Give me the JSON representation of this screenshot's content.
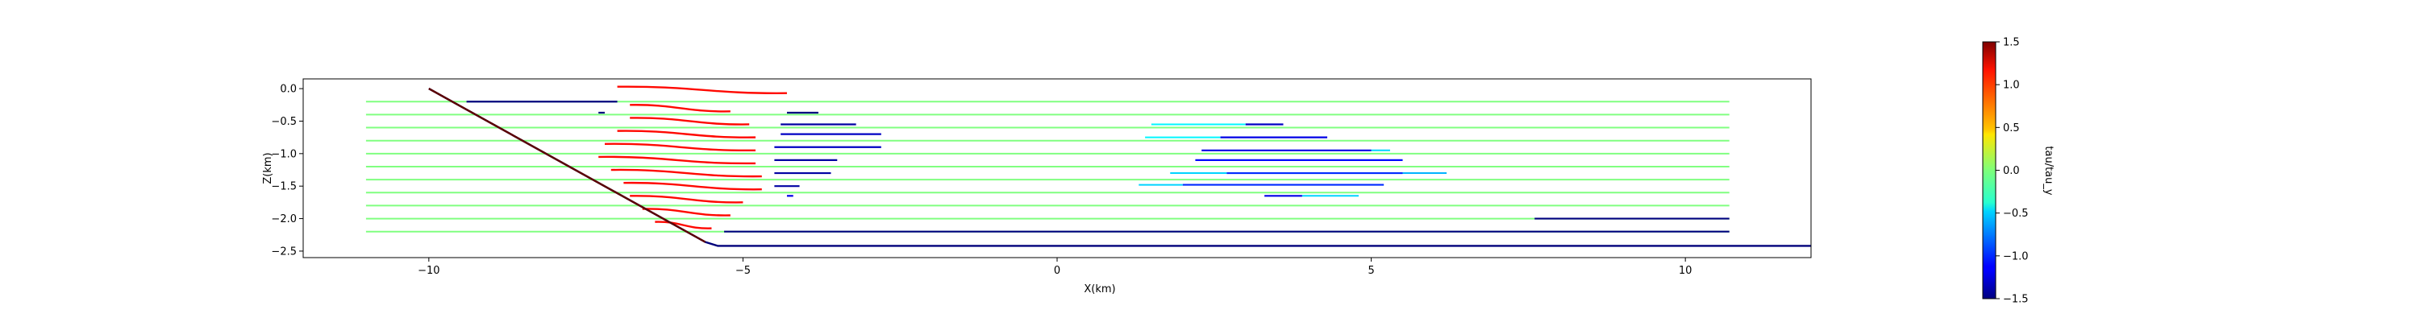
{
  "chart_data": {
    "type": "line",
    "title": "",
    "xlabel": "X(km)",
    "ylabel": "Z(km)",
    "xlim": [
      -12.0,
      12.0
    ],
    "ylim": [
      -2.6,
      0.15
    ],
    "x_ticks": [
      -10,
      -5,
      0,
      5,
      10
    ],
    "x_tick_labels": [
      "−10",
      "−5",
      "0",
      "5",
      "10"
    ],
    "y_ticks": [
      0.0,
      -0.5,
      -1.0,
      -1.5,
      -2.0,
      -2.5
    ],
    "y_tick_labels": [
      "0.0",
      "−0.5",
      "−1.0",
      "−1.5",
      "−2.0",
      "−2.5"
    ],
    "grid": false,
    "colorbar": {
      "label": "tau/tau_y",
      "range": [
        -1.5,
        1.5
      ],
      "colormap": "jet",
      "ticks": [
        1.5,
        1.0,
        0.5,
        0.0,
        -0.5,
        -1.0,
        -1.5
      ],
      "tick_labels": [
        "1.5",
        "1.0",
        "0.5",
        "0.0",
        "−0.5",
        "−1.0",
        "−1.5"
      ]
    },
    "boundary": {
      "name": "domain boundary",
      "color": "#00007a",
      "x": [
        -10.0,
        -5.6,
        -5.4,
        12.0
      ],
      "y": [
        0.0,
        -2.36,
        -2.42,
        -2.42
      ]
    },
    "streamlines": {
      "x_start": -11.0,
      "x_end": 10.7,
      "levels": [
        -0.2,
        -0.4,
        -0.6,
        -0.8,
        -1.0,
        -1.2,
        -1.4,
        -1.6,
        -1.8,
        -2.0,
        -2.2
      ]
    },
    "plastic_band": [
      {
        "y": -0.02,
        "x0": -7.0,
        "x1": -4.3
      },
      {
        "y": -0.3,
        "x0": -6.8,
        "x1": -5.2
      },
      {
        "y": -0.5,
        "x0": -6.8,
        "x1": -4.9
      },
      {
        "y": -0.7,
        "x0": -7.0,
        "x1": -4.8
      },
      {
        "y": -0.9,
        "x0": -7.2,
        "x1": -4.8
      },
      {
        "y": -1.1,
        "x0": -7.3,
        "x1": -4.8
      },
      {
        "y": -1.3,
        "x0": -7.1,
        "x1": -4.7
      },
      {
        "y": -1.5,
        "x0": -6.9,
        "x1": -4.7
      },
      {
        "y": -1.7,
        "x0": -6.8,
        "x1": -5.0
      },
      {
        "y": -1.9,
        "x0": -6.6,
        "x1": -5.2
      },
      {
        "y": -2.1,
        "x0": -6.4,
        "x1": -5.5
      }
    ],
    "low_stress_segments": [
      {
        "y": -0.2,
        "x0": -9.4,
        "x1": -7.0,
        "value": -1.5
      },
      {
        "y": -0.37,
        "x0": -7.3,
        "x1": -7.2,
        "value": -1.5
      },
      {
        "y": -0.37,
        "x0": -4.3,
        "x1": -3.8,
        "value": -1.5
      },
      {
        "y": -0.55,
        "x0": -4.4,
        "x1": -3.2,
        "value": -1.4
      },
      {
        "y": -0.7,
        "x0": -4.4,
        "x1": -2.8,
        "value": -1.3
      },
      {
        "y": -0.9,
        "x0": -4.5,
        "x1": -2.8,
        "value": -1.3
      },
      {
        "y": -1.1,
        "x0": -4.5,
        "x1": -3.5,
        "value": -1.4
      },
      {
        "y": -1.3,
        "x0": -4.5,
        "x1": -3.6,
        "value": -1.4
      },
      {
        "y": -1.5,
        "x0": -4.5,
        "x1": -4.1,
        "value": -1.4
      },
      {
        "y": -1.65,
        "x0": -4.3,
        "x1": -4.2,
        "value": -1.2
      },
      {
        "y": -0.55,
        "x0": 3.0,
        "x1": 3.6,
        "value": -1.3
      },
      {
        "y": -0.75,
        "x0": 2.6,
        "x1": 4.3,
        "value": -1.2
      },
      {
        "y": -0.95,
        "x0": 2.3,
        "x1": 5.0,
        "value": -1.2
      },
      {
        "y": -1.1,
        "x0": 2.2,
        "x1": 5.5,
        "value": -1.1
      },
      {
        "y": -1.3,
        "x0": 2.7,
        "x1": 5.5,
        "value": -1.0
      },
      {
        "y": -1.48,
        "x0": 2.0,
        "x1": 5.2,
        "value": -1.0
      },
      {
        "y": -1.65,
        "x0": 3.3,
        "x1": 3.9,
        "value": -1.2
      },
      {
        "y": -2.0,
        "x0": 7.6,
        "x1": 10.7,
        "value": -1.5
      },
      {
        "y": -2.2,
        "x0": -5.3,
        "x1": 10.7,
        "value": -1.5
      }
    ],
    "transition_segments": [
      {
        "y": -0.55,
        "x0": 1.5,
        "x1": 3.0,
        "value": -0.4
      },
      {
        "y": -0.75,
        "x0": 1.4,
        "x1": 2.6,
        "value": -0.4
      },
      {
        "y": -0.95,
        "x0": 5.0,
        "x1": 5.3,
        "value": -0.5
      },
      {
        "y": -1.3,
        "x0": 1.8,
        "x1": 2.7,
        "value": -0.5
      },
      {
        "y": -1.3,
        "x0": 5.5,
        "x1": 6.2,
        "value": -0.6
      },
      {
        "y": -1.48,
        "x0": 1.3,
        "x1": 2.0,
        "value": -0.5
      },
      {
        "y": -1.65,
        "x0": 3.9,
        "x1": 4.8,
        "value": -0.5
      }
    ]
  }
}
